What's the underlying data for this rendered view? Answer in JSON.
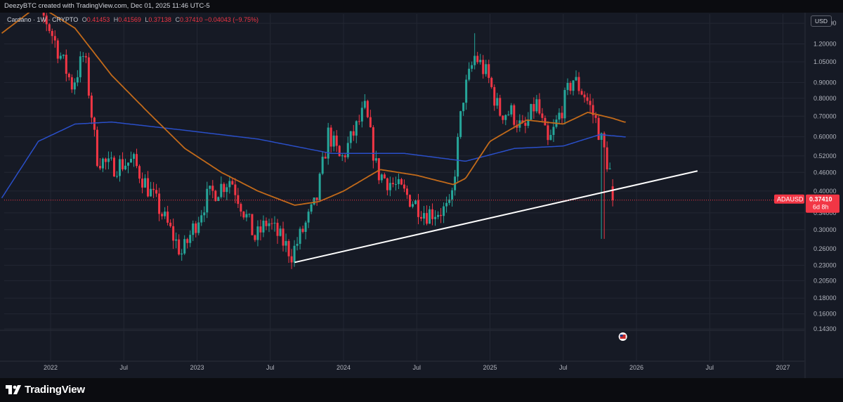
{
  "header": {
    "credit": "DeezyBTC created with TradingView.com, Dec 01, 2025 11:46 UTC-5"
  },
  "legend": {
    "symbol": "Cardano · 1W · CRYPTO",
    "open_label": "O",
    "open": "0.41453",
    "high_label": "H",
    "high": "0.41569",
    "low_label": "L",
    "low": "0.37138",
    "close_label": "C",
    "close": "0.37410",
    "change": "−0.04043 (−9.75%)"
  },
  "currency": "USD",
  "price_tag": {
    "ticker": "ADAUSD",
    "price": "0.37410",
    "countdown": "6d 8h"
  },
  "brand": {
    "name": "TradingView"
  },
  "colors": {
    "background": "#161a25",
    "up": "#26a69a",
    "down": "#f23645",
    "ma_orange": "#c26a1a",
    "ma_blue": "#2a4fc9",
    "trendline": "#ffffff"
  },
  "chart_data": {
    "type": "candlestick",
    "title": "Cardano · 1W · CRYPTO",
    "y_scale": "log",
    "y_ticks": [
      "1.40000",
      "1.20000",
      "1.05000",
      "0.90000",
      "0.80000",
      "0.70000",
      "0.60000",
      "0.52000",
      "0.46000",
      "0.40000",
      "0.34000",
      "0.30000",
      "0.26000",
      "0.23000",
      "0.20500",
      "0.18000",
      "0.16000",
      "0.14300"
    ],
    "x_ticks": [
      "2022",
      "Jul",
      "2023",
      "Jul",
      "2024",
      "Jul",
      "2025",
      "Jul",
      "2026",
      "Jul",
      "2027"
    ],
    "x_range": [
      "2021-09",
      "2027-03"
    ],
    "y_range": [
      0.143,
      1.5
    ],
    "grid": true,
    "candle_anchors": [
      [
        "2021-10",
        2.1
      ],
      [
        "2022-01",
        1.4
      ],
      [
        "2022-03",
        0.88
      ],
      [
        "2022-04",
        1.12
      ],
      [
        "2022-05",
        0.52
      ],
      [
        "2022-06",
        0.48
      ],
      [
        "2022-08",
        0.5
      ],
      [
        "2022-10",
        0.36
      ],
      [
        "2022-12",
        0.25
      ],
      [
        "2023-02",
        0.38
      ],
      [
        "2023-04",
        0.44
      ],
      [
        "2023-06",
        0.28
      ],
      [
        "2023-07",
        0.32
      ],
      [
        "2023-09",
        0.25
      ],
      [
        "2023-11",
        0.37
      ],
      [
        "2023-12",
        0.62
      ],
      [
        "2024-01",
        0.5
      ],
      [
        "2024-03",
        0.74
      ],
      [
        "2024-04",
        0.46
      ],
      [
        "2024-06",
        0.4
      ],
      [
        "2024-08",
        0.34
      ],
      [
        "2024-10",
        0.35
      ],
      [
        "2024-11",
        0.8
      ],
      [
        "2024-12",
        1.1
      ],
      [
        "2025-01",
        0.95
      ],
      [
        "2025-02",
        0.72
      ],
      [
        "2025-03",
        0.72
      ],
      [
        "2025-04",
        0.62
      ],
      [
        "2025-05",
        0.78
      ],
      [
        "2025-06",
        0.56
      ],
      [
        "2025-08",
        0.93
      ],
      [
        "2025-09",
        0.82
      ],
      [
        "2025-10",
        0.66
      ],
      [
        "2025-11",
        0.47
      ],
      [
        "2025-12",
        0.374
      ]
    ],
    "sma_orange": [
      [
        "2021-09",
        1.3
      ],
      [
        "2021-12",
        1.6
      ],
      [
        "2022-03",
        1.35
      ],
      [
        "2022-06",
        0.95
      ],
      [
        "2022-09",
        0.72
      ],
      [
        "2022-12",
        0.55
      ],
      [
        "2023-03",
        0.46
      ],
      [
        "2023-06",
        0.4
      ],
      [
        "2023-09",
        0.36
      ],
      [
        "2023-11",
        0.37
      ],
      [
        "2024-01",
        0.4
      ],
      [
        "2024-04",
        0.47
      ],
      [
        "2024-07",
        0.45
      ],
      [
        "2024-10",
        0.42
      ],
      [
        "2024-11",
        0.44
      ],
      [
        "2025-01",
        0.58
      ],
      [
        "2025-04",
        0.68
      ],
      [
        "2025-07",
        0.66
      ],
      [
        "2025-09",
        0.72
      ],
      [
        "2025-11",
        0.69
      ],
      [
        "2025-12",
        0.67
      ]
    ],
    "sma_blue": [
      [
        "2021-09",
        0.38
      ],
      [
        "2021-12",
        0.58
      ],
      [
        "2022-03",
        0.66
      ],
      [
        "2022-06",
        0.67
      ],
      [
        "2022-12",
        0.63
      ],
      [
        "2023-06",
        0.59
      ],
      [
        "2023-12",
        0.53
      ],
      [
        "2024-06",
        0.53
      ],
      [
        "2024-11",
        0.5
      ],
      [
        "2025-03",
        0.55
      ],
      [
        "2025-07",
        0.56
      ],
      [
        "2025-10",
        0.61
      ],
      [
        "2025-12",
        0.6
      ]
    ],
    "trendline": {
      "start": [
        "2023-09",
        0.235
      ],
      "end": [
        "2026-06",
        0.465
      ]
    },
    "last_price": 0.3741
  }
}
